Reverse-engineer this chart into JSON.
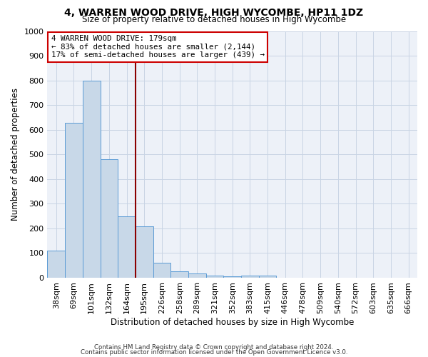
{
  "title1": "4, WARREN WOOD DRIVE, HIGH WYCOMBE, HP11 1DZ",
  "title2": "Size of property relative to detached houses in High Wycombe",
  "xlabel": "Distribution of detached houses by size in High Wycombe",
  "ylabel": "Number of detached properties",
  "bar_color": "#c8d8e8",
  "bar_edge_color": "#5b9bd5",
  "categories": [
    "38sqm",
    "69sqm",
    "101sqm",
    "132sqm",
    "164sqm",
    "195sqm",
    "226sqm",
    "258sqm",
    "289sqm",
    "321sqm",
    "352sqm",
    "383sqm",
    "415sqm",
    "446sqm",
    "478sqm",
    "509sqm",
    "540sqm",
    "572sqm",
    "603sqm",
    "635sqm",
    "666sqm"
  ],
  "values": [
    110,
    630,
    800,
    480,
    250,
    210,
    62,
    27,
    17,
    10,
    5,
    10,
    10,
    0,
    0,
    0,
    0,
    0,
    0,
    0,
    0
  ],
  "ylim": [
    0,
    1000
  ],
  "vline_color": "#8b0000",
  "annotation_text": "4 WARREN WOOD DRIVE: 179sqm\n← 83% of detached houses are smaller (2,144)\n17% of semi-detached houses are larger (439) →",
  "annotation_box_color": "#cc0000",
  "grid_color": "#c8d4e4",
  "bg_color": "#edf1f8",
  "footer1": "Contains HM Land Registry data © Crown copyright and database right 2024.",
  "footer2": "Contains public sector information licensed under the Open Government Licence v3.0."
}
